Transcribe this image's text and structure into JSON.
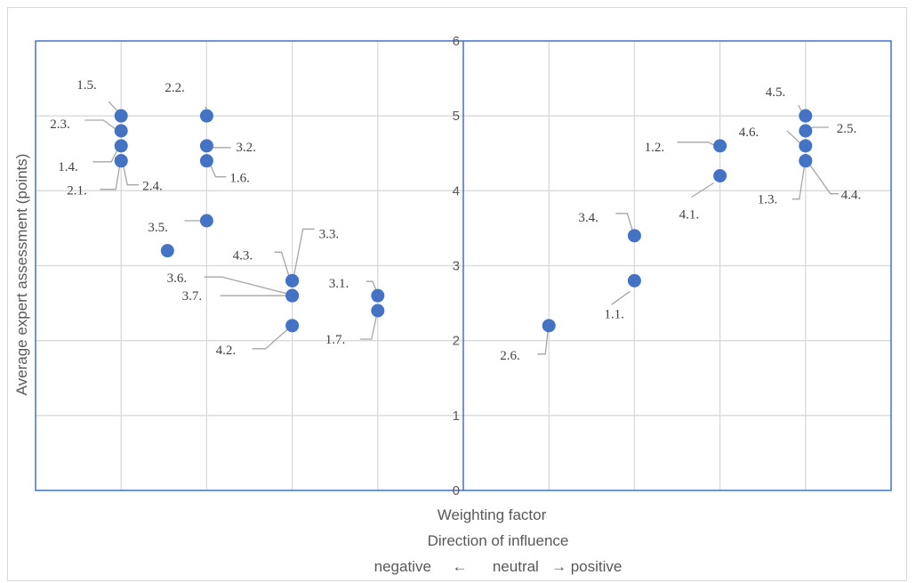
{
  "chart_data": {
    "type": "scatter",
    "xlabel": "Weighting factor",
    "ylabel": "Average expert assessment (points)",
    "direction_title": "Direction of influence",
    "direction_scale": "negative     ←      neutral   → positive",
    "xlim": [
      -1.2,
      1.2
    ],
    "ylim": [
      0,
      6
    ],
    "yticks": [
      "0",
      "1",
      "2",
      "3",
      "4",
      "5",
      "6"
    ],
    "grid": true,
    "point_color": "#4472c4",
    "axis_color": "#4472c4",
    "points": [
      {
        "x": -0.96,
        "y": 5.0,
        "label": "1.5."
      },
      {
        "x": -0.96,
        "y": 4.8,
        "label": "2.3."
      },
      {
        "x": -0.96,
        "y": 4.6,
        "label": "1.4."
      },
      {
        "x": -0.96,
        "y": 4.4,
        "label": "2.1."
      },
      {
        "x": -0.96,
        "y": 4.4,
        "label": "2.4."
      },
      {
        "x": -0.72,
        "y": 5.0,
        "label": "2.2."
      },
      {
        "x": -0.72,
        "y": 4.6,
        "label": "3.2."
      },
      {
        "x": -0.72,
        "y": 4.4,
        "label": "1.6."
      },
      {
        "x": -0.72,
        "y": 3.6,
        "label": "3.5."
      },
      {
        "x": -0.83,
        "y": 3.2,
        "label": ""
      },
      {
        "x": -0.48,
        "y": 2.8,
        "label": "4.3."
      },
      {
        "x": -0.48,
        "y": 2.8,
        "label": "3.3."
      },
      {
        "x": -0.48,
        "y": 2.6,
        "label": "3.6."
      },
      {
        "x": -0.48,
        "y": 2.6,
        "label": "3.7."
      },
      {
        "x": -0.48,
        "y": 2.2,
        "label": "4.2."
      },
      {
        "x": -0.24,
        "y": 2.6,
        "label": "3.1."
      },
      {
        "x": -0.24,
        "y": 2.4,
        "label": "1.7."
      },
      {
        "x": 0.24,
        "y": 2.2,
        "label": "2.6."
      },
      {
        "x": 0.48,
        "y": 2.8,
        "label": "1.1."
      },
      {
        "x": 0.48,
        "y": 3.4,
        "label": "3.4."
      },
      {
        "x": 0.72,
        "y": 4.2,
        "label": "4.1."
      },
      {
        "x": 0.72,
        "y": 4.6,
        "label": "1.2."
      },
      {
        "x": 0.96,
        "y": 5.0,
        "label": "4.5."
      },
      {
        "x": 0.96,
        "y": 4.8,
        "label": "2.5."
      },
      {
        "x": 0.96,
        "y": 4.6,
        "label": "4.6."
      },
      {
        "x": 0.96,
        "y": 4.4,
        "label": "1.3."
      },
      {
        "x": 0.96,
        "y": 4.4,
        "label": "4.4."
      }
    ]
  }
}
